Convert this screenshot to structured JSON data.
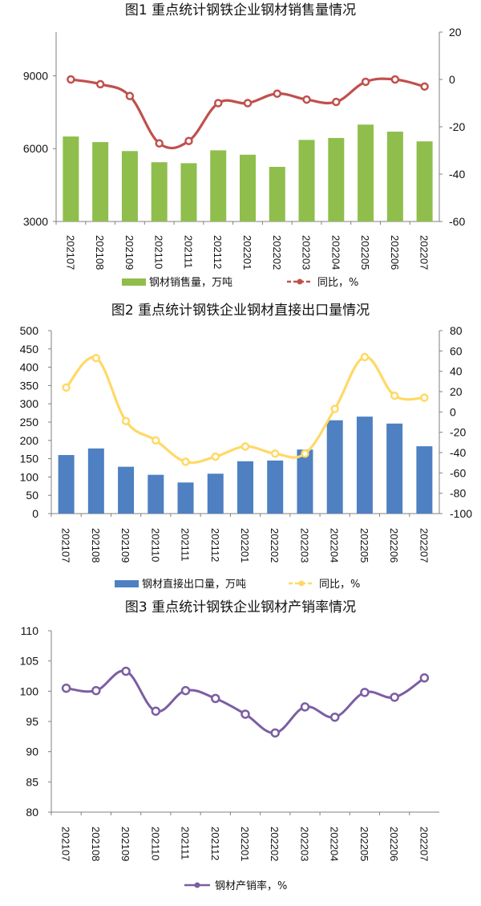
{
  "chart_data": [
    {
      "type": "bar+line",
      "title": "图1  重点统计钢铁企业钢材销售量情况",
      "categories": [
        "202107",
        "202108",
        "202109",
        "202110",
        "202111",
        "202112",
        "202201",
        "202202",
        "202203",
        "202204",
        "202205",
        "202206",
        "202207"
      ],
      "series": [
        {
          "name": "钢材销售量，万吨",
          "kind": "bar",
          "axis": "left",
          "color": "#8fbe4c",
          "values": [
            6500,
            6270,
            5900,
            5440,
            5400,
            5930,
            5750,
            5250,
            6360,
            6440,
            6990,
            6700,
            6300
          ]
        },
        {
          "name": "同比，%",
          "kind": "line",
          "axis": "right",
          "color": "#c0504d",
          "line_style": "dashed",
          "smooth": true,
          "values": [
            0,
            -2,
            -7,
            -27,
            -26,
            -10,
            -10,
            -6,
            -8.5,
            -9.5,
            -1,
            0,
            -3
          ]
        }
      ],
      "left_axis": {
        "min": 3000,
        "max": 10800,
        "ticks": [
          3000,
          6000,
          9000
        ]
      },
      "right_axis": {
        "min": -60,
        "max": 20,
        "ticks": [
          20,
          0,
          -20,
          -40,
          -60
        ]
      },
      "legend": [
        "钢材销售量，万吨",
        "同比，%"
      ]
    },
    {
      "type": "bar+line",
      "title": "图2  重点统计钢铁企业钢材直接出口量情况",
      "categories": [
        "202107",
        "202108",
        "202109",
        "202110",
        "202111",
        "202112",
        "202201",
        "202202",
        "202203",
        "202204",
        "202205",
        "202206",
        "202207"
      ],
      "series": [
        {
          "name": "钢材直接出口量，万吨",
          "kind": "bar",
          "axis": "left",
          "color": "#4e80c2",
          "values": [
            160,
            178,
            128,
            106,
            85,
            109,
            143,
            145,
            175,
            255,
            265,
            246,
            184
          ]
        },
        {
          "name": "同比，%",
          "kind": "line",
          "axis": "right",
          "color": "#ffd966",
          "line_style": "dashed",
          "smooth": true,
          "values": [
            24,
            53,
            -9,
            -28,
            -49,
            -44,
            -34,
            -41,
            -41,
            3,
            54,
            16,
            14
          ]
        }
      ],
      "left_axis": {
        "min": 0,
        "max": 500,
        "ticks": [
          0,
          50,
          100,
          150,
          200,
          250,
          300,
          350,
          400,
          450,
          500
        ]
      },
      "right_axis": {
        "min": -100,
        "max": 80,
        "ticks": [
          80,
          60,
          40,
          20,
          0,
          -20,
          -40,
          -60,
          -80,
          -100
        ]
      },
      "legend": [
        "钢材直接出口量，万吨",
        "同比，%"
      ]
    },
    {
      "type": "line",
      "title": "图3  重点统计钢铁企业钢材产销率情况",
      "categories": [
        "202107",
        "202108",
        "202109",
        "202110",
        "202111",
        "202112",
        "202201",
        "202202",
        "202203",
        "202204",
        "202205",
        "202206",
        "202207"
      ],
      "series": [
        {
          "name": "钢材产销率，%",
          "kind": "line",
          "axis": "left",
          "color": "#7b5ea3",
          "line_style": "solid",
          "smooth": true,
          "values": [
            100.5,
            100.1,
            103.3,
            96.7,
            100.1,
            98.8,
            96.2,
            93.1,
            97.4,
            95.7,
            99.8,
            99.0,
            102.2
          ]
        }
      ],
      "left_axis": {
        "min": 80,
        "max": 110,
        "ticks": [
          80,
          85,
          90,
          95,
          100,
          105,
          110
        ]
      },
      "legend": [
        "钢材产销率，%"
      ]
    }
  ]
}
